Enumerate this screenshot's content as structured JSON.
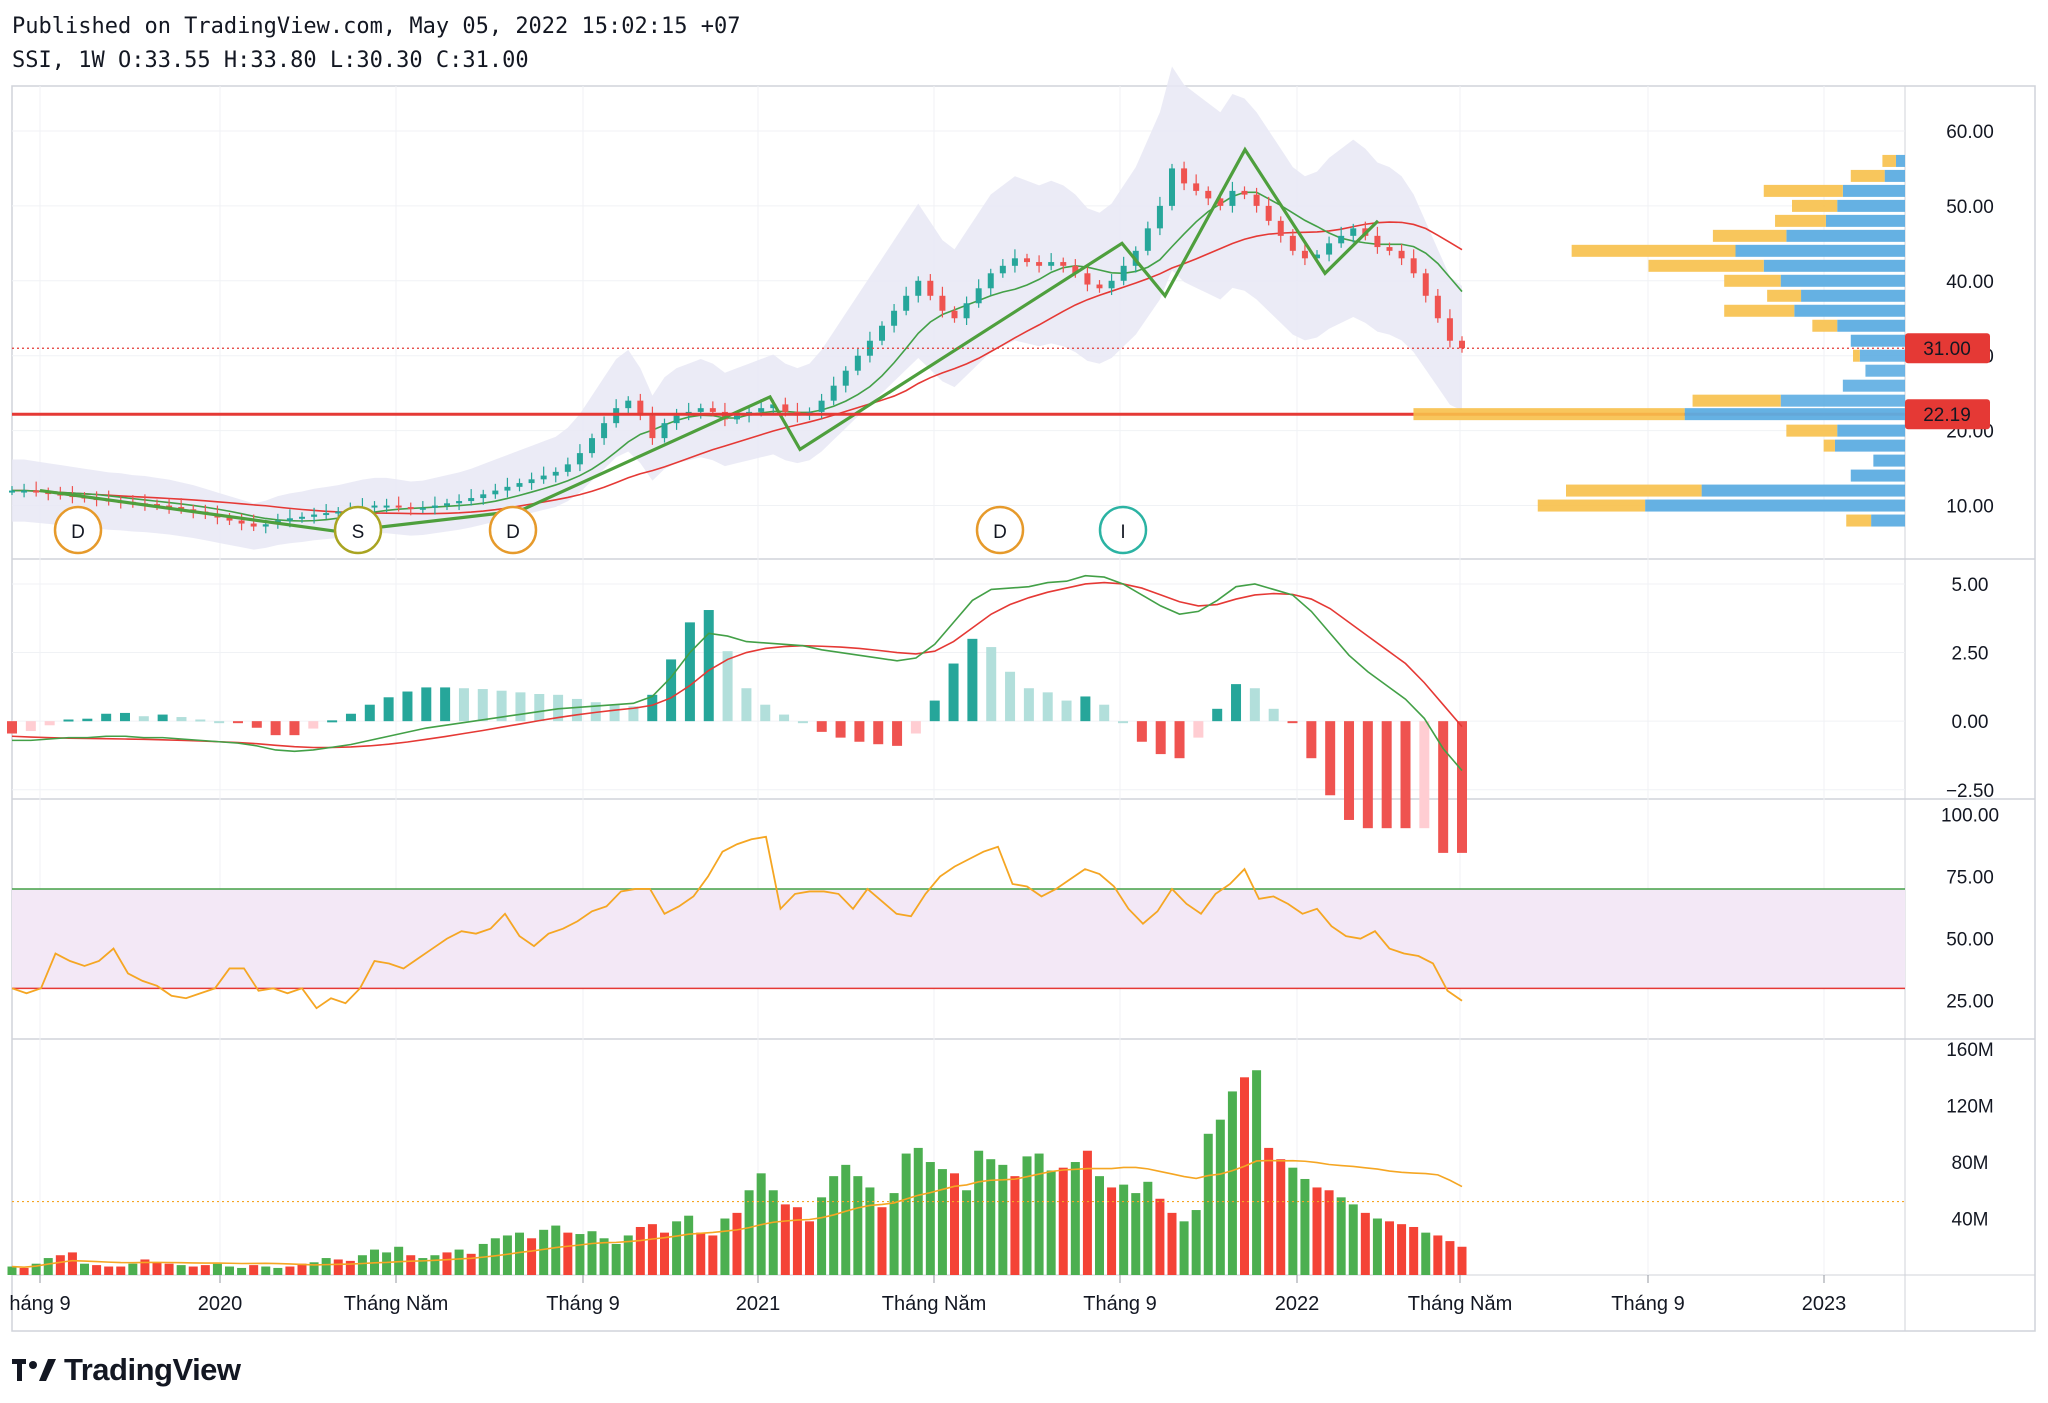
{
  "header": {
    "published": "Published on TradingView.com, May 05, 2022 15:02:15 +07",
    "ohlc": "SSI, 1W O:33.55 H:33.80 L:30.30 C:31.00"
  },
  "brand": {
    "name": "TradingView"
  },
  "colors": {
    "up": "#26a69a",
    "down": "#ef5350",
    "volume_up": "#4caf50",
    "volume_down": "#f44336",
    "support_line": "#e53935",
    "ma_fast": "#43a047",
    "ma_slow": "#e53935",
    "bollinger_fill": "#e8e8f4",
    "pattern": "#4e9f3d",
    "rsi_line": "#f5a623",
    "rsi_band": "#f3e8f6",
    "macd_line": "#43a047",
    "signal_line": "#e53935",
    "vp_buy": "#5dade2",
    "vp_sell": "#f7c04a",
    "event_d": "#e69a2b",
    "event_s": "#a9a421",
    "event_i": "#2bb3a3"
  },
  "chart_data": [
    {
      "type": "candlestick",
      "symbol": "SSI",
      "interval": "1W",
      "last_open": 33.55,
      "last_high": 33.8,
      "last_low": 30.3,
      "last_close": 31.0,
      "price_labels": {
        "close": "31.00",
        "support": "22.19"
      },
      "support_level": 22.19,
      "y_ticks": [
        "60.00",
        "50.00",
        "40.00",
        "30.00",
        "20.00",
        "10.00"
      ],
      "y_range": [
        3,
        66
      ],
      "x_ticks": [
        "háng 9",
        "2020",
        "Tháng Năm",
        "Tháng 9",
        "2021",
        "Tháng Năm",
        "Tháng 9",
        "2022",
        "Tháng Năm",
        "Tháng 9",
        "2023"
      ],
      "close_series": [
        12,
        12,
        11.8,
        11.6,
        11.4,
        11.2,
        11,
        10.8,
        10.6,
        10.5,
        10.3,
        10.2,
        10,
        9.8,
        9.5,
        9.2,
        8.8,
        8.4,
        8,
        7.6,
        7.2,
        7.5,
        8,
        8.3,
        8.5,
        8.8,
        9,
        9.2,
        9.5,
        9.8,
        10,
        10,
        9.8,
        9.6,
        9.7,
        10,
        10.3,
        10.6,
        11,
        11.5,
        12,
        12.5,
        13,
        13.5,
        14,
        14.5,
        15.5,
        17,
        19,
        21,
        23,
        24,
        22,
        19,
        21,
        22,
        22.5,
        23,
        22.5,
        21.5,
        22,
        22.5,
        23,
        23.5,
        22.5,
        22,
        22.5,
        24,
        26,
        28,
        30,
        32,
        34,
        36,
        38,
        40,
        38,
        36,
        35,
        37,
        39,
        41,
        42,
        43,
        42.5,
        42,
        42.5,
        42,
        41,
        39.5,
        39,
        40,
        42,
        44,
        47,
        50,
        55,
        53,
        52,
        51,
        50,
        52,
        51.5,
        50,
        48,
        46,
        44,
        43,
        43.5,
        45,
        46,
        47,
        46,
        44.5,
        44,
        43,
        41,
        38,
        35,
        32,
        31
      ],
      "events": [
        {
          "label": "D",
          "kind": "dividend"
        },
        {
          "label": "S",
          "kind": "split"
        },
        {
          "label": "D",
          "kind": "dividend"
        },
        {
          "label": "D",
          "kind": "dividend"
        },
        {
          "label": "I",
          "kind": "issue"
        }
      ],
      "volume_profile": [
        {
          "price": 56,
          "buy": 8,
          "sell": 12
        },
        {
          "price": 54,
          "buy": 18,
          "sell": 30
        },
        {
          "price": 52,
          "buy": 55,
          "sell": 70
        },
        {
          "price": 50,
          "buy": 60,
          "sell": 40
        },
        {
          "price": 48,
          "buy": 70,
          "sell": 45
        },
        {
          "price": 46,
          "buy": 105,
          "sell": 65
        },
        {
          "price": 44,
          "buy": 150,
          "sell": 145
        },
        {
          "price": 42,
          "buy": 125,
          "sell": 102
        },
        {
          "price": 40,
          "buy": 110,
          "sell": 50
        },
        {
          "price": 38,
          "buy": 92,
          "sell": 30
        },
        {
          "price": 36,
          "buy": 98,
          "sell": 62
        },
        {
          "price": 34,
          "buy": 60,
          "sell": 22
        },
        {
          "price": 32,
          "buy": 48,
          "sell": 0
        },
        {
          "price": 30,
          "buy": 40,
          "sell": 6
        },
        {
          "price": 28,
          "buy": 35,
          "sell": 0
        },
        {
          "price": 26,
          "buy": 55,
          "sell": 0
        },
        {
          "price": 24,
          "buy": 110,
          "sell": 78
        },
        {
          "price": 22.2,
          "buy": 195,
          "sell": 240
        },
        {
          "price": 20,
          "buy": 60,
          "sell": 45
        },
        {
          "price": 18,
          "buy": 62,
          "sell": 10
        },
        {
          "price": 16,
          "buy": 28,
          "sell": 0
        },
        {
          "price": 14,
          "buy": 48,
          "sell": 0
        },
        {
          "price": 12,
          "buy": 180,
          "sell": 120
        },
        {
          "price": 10,
          "buy": 230,
          "sell": 95
        },
        {
          "price": 8,
          "buy": 30,
          "sell": 22
        }
      ]
    },
    {
      "type": "line",
      "indicator": "MACD",
      "y_ticks": [
        "5.00",
        "2.50",
        "0.00",
        "−2.50"
      ],
      "y_range": [
        -2.8,
        5.8
      ],
      "macd": [
        -0.7,
        -0.7,
        -0.65,
        -0.6,
        -0.6,
        -0.55,
        -0.55,
        -0.6,
        -0.6,
        -0.65,
        -0.7,
        -0.75,
        -0.8,
        -0.9,
        -1.05,
        -1.1,
        -1.05,
        -0.95,
        -0.85,
        -0.7,
        -0.55,
        -0.4,
        -0.25,
        -0.15,
        -0.05,
        0.05,
        0.15,
        0.25,
        0.35,
        0.45,
        0.5,
        0.55,
        0.6,
        0.65,
        0.9,
        1.6,
        2.5,
        3.2,
        3.1,
        2.9,
        2.85,
        2.8,
        2.75,
        2.6,
        2.5,
        2.4,
        2.3,
        2.2,
        2.3,
        2.8,
        3.6,
        4.4,
        4.8,
        4.85,
        4.9,
        5.05,
        5.1,
        5.3,
        5.25,
        5.0,
        4.6,
        4.2,
        3.9,
        4.0,
        4.4,
        4.9,
        5.0,
        4.8,
        4.6,
        4.0,
        3.2,
        2.4,
        1.8,
        1.3,
        0.8,
        0.1,
        -1.0,
        -1.8
      ],
      "signal": [
        -0.55,
        -0.58,
        -0.6,
        -0.62,
        -0.63,
        -0.64,
        -0.65,
        -0.66,
        -0.68,
        -0.7,
        -0.72,
        -0.75,
        -0.78,
        -0.82,
        -0.88,
        -0.93,
        -0.96,
        -0.96,
        -0.94,
        -0.9,
        -0.84,
        -0.76,
        -0.66,
        -0.56,
        -0.45,
        -0.34,
        -0.22,
        -0.1,
        0.02,
        0.13,
        0.23,
        0.32,
        0.4,
        0.47,
        0.58,
        0.85,
        1.3,
        1.85,
        2.25,
        2.5,
        2.65,
        2.72,
        2.75,
        2.73,
        2.7,
        2.65,
        2.58,
        2.5,
        2.45,
        2.55,
        2.9,
        3.4,
        3.9,
        4.25,
        4.5,
        4.7,
        4.85,
        5.0,
        5.05,
        5.0,
        4.85,
        4.6,
        4.35,
        4.2,
        4.25,
        4.45,
        4.6,
        4.65,
        4.62,
        4.45,
        4.1,
        3.6,
        3.1,
        2.6,
        2.1,
        1.4,
        0.6,
        -0.2
      ]
    },
    {
      "type": "line",
      "indicator": "RSI",
      "y_ticks": [
        "100.00",
        "75.00",
        "50.00",
        "25.00"
      ],
      "y_range": [
        10,
        105
      ],
      "overbought": 70,
      "oversold": 30,
      "values": [
        30,
        28,
        30,
        44,
        41,
        39,
        41,
        46,
        36,
        33,
        31,
        27,
        26,
        28,
        30,
        38,
        38,
        29,
        30,
        28,
        30,
        22,
        26,
        24,
        30,
        41,
        40,
        38,
        42,
        46,
        50,
        53,
        52,
        54,
        60,
        51,
        47,
        52,
        54,
        57,
        61,
        63,
        69,
        70,
        70,
        60,
        63,
        67,
        75,
        85,
        88,
        90,
        91,
        62,
        68,
        69,
        69,
        68,
        62,
        70,
        65,
        60,
        59,
        68,
        75,
        79,
        82,
        85,
        87,
        72,
        71,
        67,
        70,
        74,
        78,
        76,
        71,
        62,
        56,
        61,
        70,
        64,
        60,
        68,
        72,
        78,
        66,
        67,
        64,
        60,
        62,
        55,
        51,
        50,
        53,
        46,
        44,
        43,
        40,
        29,
        25
      ],
      "note": "last values approximate"
    },
    {
      "type": "bar",
      "indicator": "Volume",
      "y_ticks": [
        "160M",
        "120M",
        "80M",
        "40M"
      ],
      "y_range": [
        0,
        165
      ],
      "unit": "M",
      "values": [
        6,
        5,
        8,
        12,
        14,
        16,
        8,
        7,
        6,
        6,
        8,
        11,
        9,
        8,
        7,
        6,
        7,
        8,
        6,
        5,
        7,
        6,
        5,
        6,
        8,
        9,
        12,
        11,
        10,
        14,
        18,
        16,
        20,
        14,
        12,
        14,
        16,
        18,
        15,
        22,
        26,
        28,
        30,
        26,
        32,
        35,
        30,
        29,
        31,
        26,
        22,
        28,
        34,
        36,
        30,
        38,
        42,
        30,
        28,
        40,
        44,
        60,
        72,
        60,
        50,
        48,
        38,
        55,
        70,
        78,
        70,
        62,
        48,
        58,
        86,
        90,
        80,
        75,
        72,
        60,
        88,
        82,
        78,
        70,
        84,
        86,
        74,
        76,
        80,
        88,
        70,
        62,
        64,
        58,
        66,
        54,
        44,
        38,
        46,
        100,
        110,
        130,
        140,
        145,
        90,
        82,
        76,
        68,
        62,
        60,
        55,
        50,
        44,
        40,
        38,
        36,
        34,
        30,
        28,
        24,
        20
      ],
      "up_mask": [
        1,
        0,
        1,
        1,
        0,
        0,
        1,
        0,
        0,
        0,
        1,
        0,
        0,
        0,
        1,
        0,
        0,
        1,
        1,
        1,
        0,
        1,
        1,
        0,
        0,
        1,
        1,
        0,
        0,
        1,
        1,
        1,
        1,
        0,
        1,
        1,
        0,
        1,
        0,
        1,
        1,
        1,
        1,
        0,
        1,
        1,
        0,
        1,
        1,
        1,
        1,
        1,
        0,
        0,
        0,
        1,
        1,
        0,
        0,
        1,
        0,
        1,
        1,
        1,
        0,
        0,
        0,
        1,
        1,
        1,
        1,
        1,
        0,
        1,
        1,
        1,
        1,
        1,
        0,
        1,
        1,
        1,
        1,
        0,
        1,
        1,
        1,
        0,
        1,
        0,
        1,
        0,
        1,
        1,
        1,
        0,
        0,
        1,
        1,
        1,
        1,
        1,
        0,
        1,
        0,
        0,
        1,
        1,
        0,
        0,
        1,
        1,
        0,
        1,
        0,
        0,
        0,
        1,
        0,
        0,
        0
      ],
      "ma_level": 52
    }
  ]
}
